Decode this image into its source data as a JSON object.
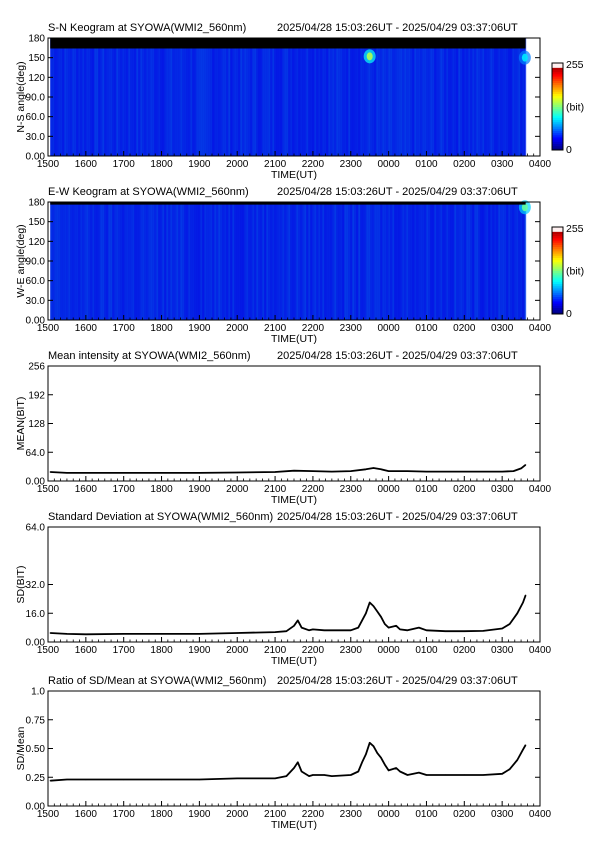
{
  "x_axis": {
    "tick_labels": [
      "1500",
      "1600",
      "1700",
      "1800",
      "1900",
      "2000",
      "2100",
      "2200",
      "2300",
      "0000",
      "0100",
      "0200",
      "0300",
      "0400"
    ],
    "label": "TIME(UT)",
    "range_hours_ut": [
      15.0,
      28.0
    ]
  },
  "time_range_text": "2025/04/28 15:03:26UT - 2025/04/29 03:37:06UT",
  "colors": {
    "keogram_background": "#0a0ac8",
    "mask": "#000000",
    "trace": "#000000"
  },
  "chart_data": [
    {
      "type": "heatmap",
      "title": "S-N Keogram at SYOWA(WMI2_560nm)",
      "ylabel": "N-S angle(deg)",
      "ytick_labels": [
        "0.00",
        "30.0",
        "60.0",
        "90.0",
        "120",
        "150",
        "180"
      ],
      "ylim": [
        0,
        180
      ],
      "colorbar": {
        "min_label": "0",
        "max_label": "255",
        "unit_label": "(bit)",
        "range": [
          0,
          255
        ]
      },
      "data_start_hour": 15.06,
      "data_end_hour": 27.62,
      "masked_band_deg": [
        164,
        180
      ],
      "bright_features": [
        {
          "time_hour": 23.5,
          "angle_deg": 152,
          "level": 140
        },
        {
          "time_hour": 27.6,
          "angle_deg": 150,
          "level": 90
        }
      ]
    },
    {
      "type": "heatmap",
      "title": "E-W Keogram at SYOWA(WMI2_560nm)",
      "ylabel": "W-E angle(deg)",
      "ytick_labels": [
        "0.00",
        "30.0",
        "60.0",
        "90.0",
        "120",
        "150",
        "180"
      ],
      "ylim": [
        0,
        180
      ],
      "colorbar": {
        "min_label": "0",
        "max_label": "255",
        "unit_label": "(bit)",
        "range": [
          0,
          255
        ]
      },
      "data_start_hour": 15.06,
      "data_end_hour": 27.62,
      "masked_band_deg": [
        176,
        180
      ],
      "bright_features": [
        {
          "time_hour": 27.6,
          "angle_deg": 172,
          "level": 120
        }
      ]
    },
    {
      "type": "line",
      "title": "Mean intensity at SYOWA(WMI2_560nm)",
      "ylabel": "MEAN(BIT)",
      "ytick_labels": [
        "0.00",
        "64.0",
        "128",
        "192",
        "256"
      ],
      "ylim": [
        0,
        256
      ],
      "x": [
        15.06,
        15.5,
        16.0,
        17.0,
        18.0,
        19.0,
        20.0,
        21.0,
        21.5,
        22.0,
        22.5,
        23.0,
        23.4,
        23.6,
        23.8,
        24.0,
        24.5,
        25.0,
        26.0,
        27.0,
        27.3,
        27.5,
        27.62
      ],
      "y": [
        20,
        18,
        18,
        18,
        18,
        18,
        19,
        20,
        23,
        22,
        21,
        22,
        26,
        29,
        26,
        22,
        22,
        21,
        21,
        21,
        22,
        28,
        36
      ]
    },
    {
      "type": "line",
      "title": "Standard Deviation at SYOWA(WMI2_560nm)",
      "ylabel": "SD(BIT)",
      "ytick_labels": [
        "0.00",
        "16.0",
        "32.0",
        "64.0"
      ],
      "ylim": [
        0,
        64
      ],
      "x": [
        15.06,
        15.5,
        16.0,
        17.0,
        18.0,
        19.0,
        20.0,
        21.0,
        21.3,
        21.5,
        21.6,
        21.7,
        21.9,
        22.0,
        22.3,
        22.5,
        23.0,
        23.2,
        23.3,
        23.4,
        23.5,
        23.6,
        23.7,
        23.8,
        23.9,
        24.0,
        24.2,
        24.3,
        24.5,
        24.8,
        25.0,
        25.5,
        26.0,
        26.5,
        27.0,
        27.2,
        27.4,
        27.55,
        27.62
      ],
      "y": [
        5,
        4.5,
        4.3,
        4.5,
        4.5,
        4.5,
        5,
        5.5,
        6,
        9,
        12,
        8,
        6.5,
        7,
        6.5,
        6.5,
        6.5,
        8,
        12,
        16,
        22,
        20,
        17,
        14,
        10,
        8,
        9,
        7,
        6.5,
        8,
        6.5,
        6,
        6,
        6.2,
        7.5,
        10,
        16,
        22,
        26
      ]
    },
    {
      "type": "line",
      "title": "Ratio of SD/Mean at SYOWA(WMI2_560nm)",
      "ylabel": "SD/Mean",
      "ytick_labels": [
        "0.00",
        "0.25",
        "0.50",
        "0.75",
        "1.0"
      ],
      "ylim": [
        0,
        1
      ],
      "x": [
        15.06,
        15.5,
        16.0,
        17.0,
        18.0,
        19.0,
        20.0,
        21.0,
        21.3,
        21.5,
        21.6,
        21.7,
        21.9,
        22.0,
        22.3,
        22.5,
        23.0,
        23.2,
        23.3,
        23.4,
        23.5,
        23.6,
        23.7,
        23.8,
        23.9,
        24.0,
        24.2,
        24.3,
        24.5,
        24.8,
        25.0,
        25.5,
        26.0,
        26.5,
        27.0,
        27.2,
        27.4,
        27.55,
        27.62
      ],
      "y": [
        0.22,
        0.23,
        0.23,
        0.23,
        0.23,
        0.23,
        0.24,
        0.24,
        0.26,
        0.33,
        0.38,
        0.3,
        0.26,
        0.27,
        0.27,
        0.26,
        0.27,
        0.3,
        0.38,
        0.45,
        0.55,
        0.52,
        0.46,
        0.42,
        0.36,
        0.31,
        0.33,
        0.3,
        0.27,
        0.29,
        0.27,
        0.27,
        0.27,
        0.27,
        0.28,
        0.32,
        0.4,
        0.49,
        0.53
      ]
    }
  ]
}
